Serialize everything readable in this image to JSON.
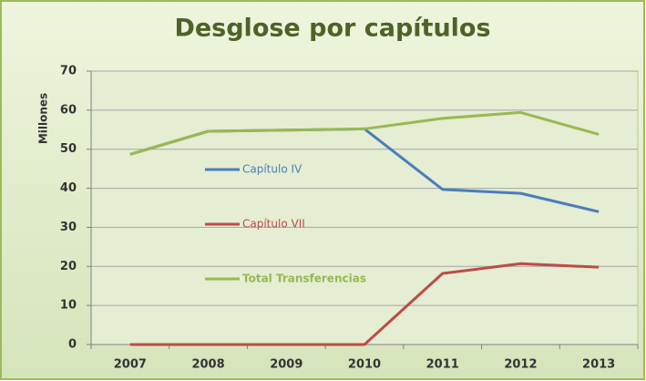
{
  "chart_data": {
    "type": "line",
    "title": "Desglose por capítulos",
    "y_label": "Millones",
    "categories": [
      "2007",
      "2008",
      "2009",
      "2010",
      "2011",
      "2012",
      "2013"
    ],
    "series": [
      {
        "name": "Capítulo IV",
        "color": "#4a7ebb",
        "values": [
          48.7,
          54.6,
          54.9,
          55.2,
          39.7,
          38.7,
          34.0
        ]
      },
      {
        "name": "Capítulo VII",
        "color": "#be4b48",
        "values": [
          0,
          0,
          0,
          0,
          18.2,
          20.7,
          19.8
        ]
      },
      {
        "name": "Total Transferencias",
        "color": "#98b954",
        "values": [
          48.7,
          54.6,
          54.9,
          55.2,
          57.9,
          59.4,
          53.8
        ]
      }
    ],
    "ylim": [
      0,
      70
    ],
    "yticks": [
      0,
      10,
      20,
      30,
      40,
      50,
      60,
      70
    ],
    "grid": true,
    "legend": "left"
  }
}
